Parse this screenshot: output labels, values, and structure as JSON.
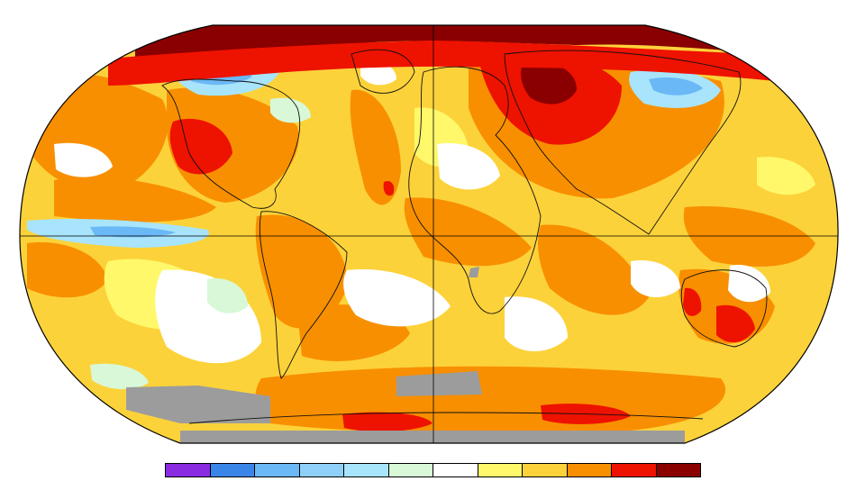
{
  "map": {
    "projection": "robinson",
    "colors": {
      "ocean_warm_base": "#fcd23a",
      "light_yellow": "#fff86a",
      "yellow_orange": "#fcc000",
      "orange": "#f88f00",
      "red": "#ee1200",
      "dark_red": "#8a0000",
      "white": "#ffffff",
      "pale_green": "#d8f8d8",
      "light_blue": "#a8e4fb",
      "blue": "#6ab8f6",
      "deep_blue": "#3a86e8",
      "gray_no_data": "#9c9c9c",
      "coast": "#111111"
    }
  },
  "legend": {
    "colors": [
      "#8a2be2",
      "#3a86e8",
      "#6ab8f6",
      "#8fd0f8",
      "#a8e4fb",
      "#d8f8d8",
      "#ffffff",
      "#fff86a",
      "#fcd23a",
      "#f88f00",
      "#ee1200",
      "#8a0000"
    ]
  }
}
